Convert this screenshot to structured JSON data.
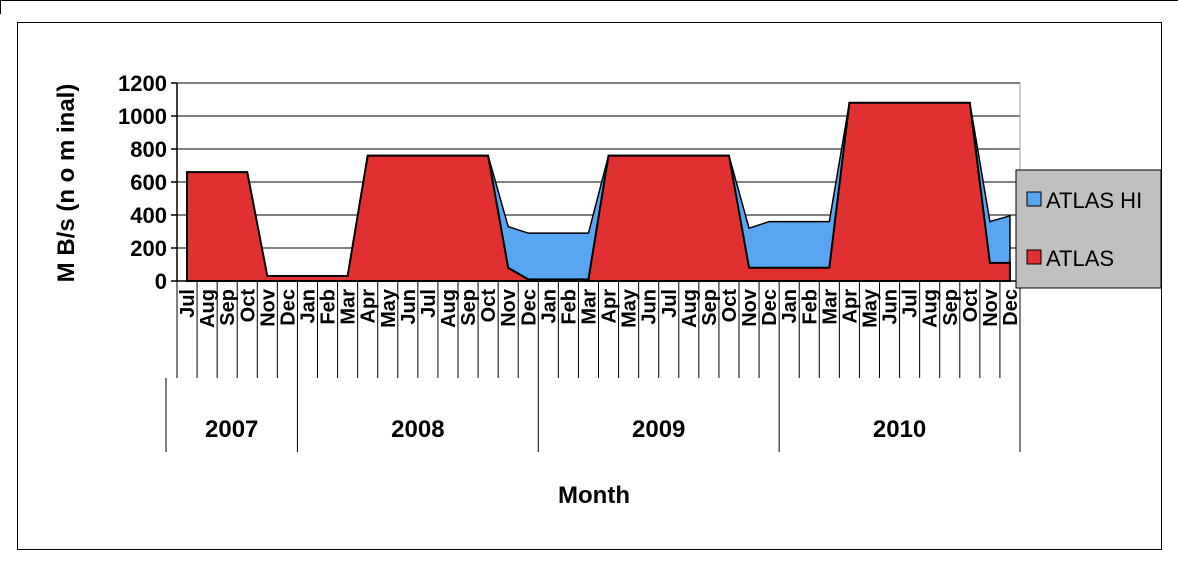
{
  "chart_data": {
    "type": "area",
    "stacked": true,
    "xlabel": "Month",
    "ylabel": "M B/s  (n o m inal)",
    "ylim": [
      0,
      1200
    ],
    "yticks": [
      0,
      200,
      400,
      600,
      800,
      1000,
      1200
    ],
    "grid": true,
    "legend_position": "right",
    "months": [
      "Jul",
      "Aug",
      "Sep",
      "Oct",
      "Nov",
      "Dec",
      "Jan",
      "Feb",
      "Mar",
      "Apr",
      "May",
      "Jun",
      "Jul",
      "Aug",
      "Sep",
      "Oct",
      "Nov",
      "Dec",
      "Jan",
      "Feb",
      "Mar",
      "Apr",
      "May",
      "Jun",
      "Jul",
      "Aug",
      "Sep",
      "Oct",
      "Nov",
      "Dec",
      "Jan",
      "Feb",
      "Mar",
      "Apr",
      "May",
      "Jun",
      "Jul",
      "Aug",
      "Sep",
      "Oct",
      "Nov",
      "Dec"
    ],
    "years": [
      {
        "label": "2007",
        "months": 6
      },
      {
        "label": "2008",
        "months": 12
      },
      {
        "label": "2009",
        "months": 12
      },
      {
        "label": "2010",
        "months": 12
      }
    ],
    "series": [
      {
        "name": "ATLAS HI",
        "color": "#5aa5f2",
        "values": [
          0,
          0,
          0,
          0,
          0,
          0,
          0,
          0,
          0,
          0,
          0,
          0,
          0,
          0,
          0,
          0,
          250,
          280,
          280,
          280,
          280,
          0,
          0,
          0,
          0,
          0,
          0,
          0,
          240,
          280,
          280,
          280,
          280,
          0,
          0,
          0,
          0,
          0,
          0,
          0,
          250,
          285
        ]
      },
      {
        "name": "ATLAS",
        "color": "#e03030",
        "values": [
          660,
          660,
          660,
          660,
          30,
          30,
          30,
          30,
          30,
          760,
          760,
          760,
          760,
          760,
          760,
          760,
          80,
          10,
          10,
          10,
          10,
          760,
          760,
          760,
          760,
          760,
          760,
          760,
          80,
          80,
          80,
          80,
          80,
          1080,
          1080,
          1080,
          1080,
          1080,
          1080,
          1080,
          110,
          110
        ]
      }
    ]
  }
}
